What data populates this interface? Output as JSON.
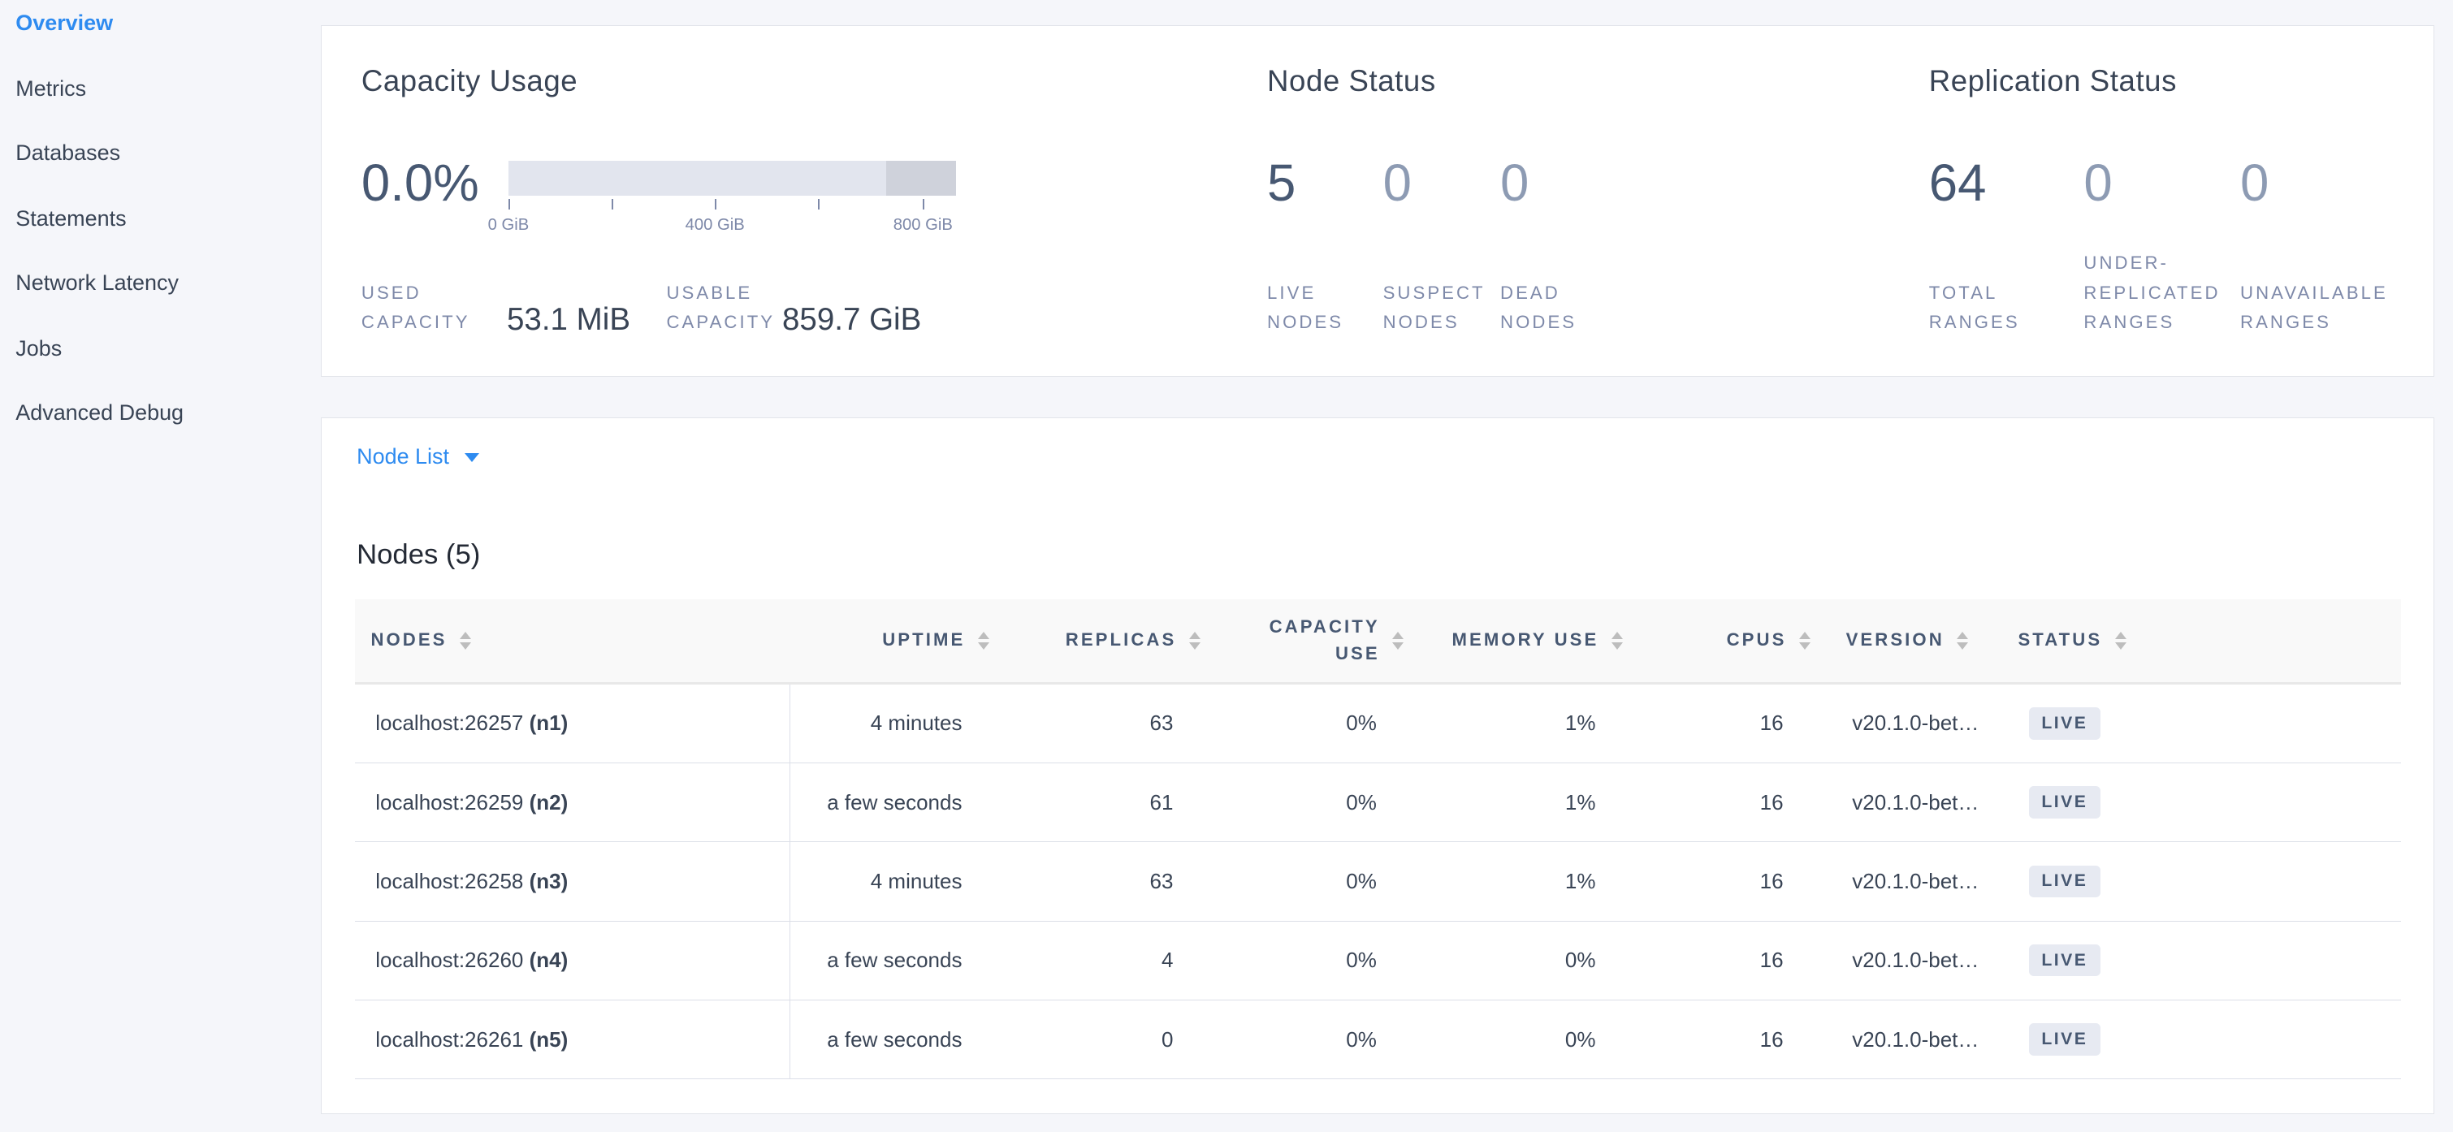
{
  "sidebar": {
    "items": [
      {
        "label": "Overview",
        "active": true
      },
      {
        "label": "Metrics"
      },
      {
        "label": "Databases"
      },
      {
        "label": "Statements"
      },
      {
        "label": "Network Latency"
      },
      {
        "label": "Jobs"
      },
      {
        "label": "Advanced Debug"
      }
    ]
  },
  "capacity": {
    "title": "Capacity Usage",
    "percent": "0.0%",
    "used_fraction": 0.0,
    "reserved_fraction_start": 0.845,
    "ticks": [
      "0 GiB",
      "400 GiB",
      "800 GiB"
    ],
    "used_label_1": "USED",
    "used_label_2": "CAPACITY",
    "used_value": "53.1 MiB",
    "usable_label_1": "USABLE",
    "usable_label_2": "CAPACITY",
    "usable_value": "859.7 GiB"
  },
  "node_status": {
    "title": "Node Status",
    "live": "5",
    "live_label_1": "LIVE",
    "live_label_2": "NODES",
    "suspect": "0",
    "suspect_label_1": "SUSPECT",
    "suspect_label_2": "NODES",
    "dead": "0",
    "dead_label_1": "DEAD",
    "dead_label_2": "NODES"
  },
  "replication": {
    "title": "Replication Status",
    "total": "64",
    "total_label_1": "TOTAL",
    "total_label_2": "RANGES",
    "under": "0",
    "under_label_1": "UNDER-",
    "under_label_2": "REPLICATED",
    "under_label_3": "RANGES",
    "unavail": "0",
    "unavail_label_1": "UNAVAILABLE",
    "unavail_label_2": "RANGES"
  },
  "node_list": {
    "dropdown_label": "Node List",
    "heading": "Nodes (5)",
    "columns": [
      "NODES",
      "UPTIME",
      "REPLICAS",
      "CAPACITY USE",
      "MEMORY USE",
      "CPUS",
      "VERSION",
      "STATUS"
    ],
    "rows": [
      {
        "address": "localhost:26257",
        "id": "(n1)",
        "uptime": "4 minutes",
        "replicas": "63",
        "capacity": "0%",
        "memory": "1%",
        "cpus": "16",
        "version": "v20.1.0-bet…",
        "status": "LIVE"
      },
      {
        "address": "localhost:26259",
        "id": "(n2)",
        "uptime": "a few seconds",
        "replicas": "61",
        "capacity": "0%",
        "memory": "1%",
        "cpus": "16",
        "version": "v20.1.0-bet…",
        "status": "LIVE"
      },
      {
        "address": "localhost:26258",
        "id": "(n3)",
        "uptime": "4 minutes",
        "replicas": "63",
        "capacity": "0%",
        "memory": "1%",
        "cpus": "16",
        "version": "v20.1.0-bet…",
        "status": "LIVE"
      },
      {
        "address": "localhost:26260",
        "id": "(n4)",
        "uptime": "a few seconds",
        "replicas": "4",
        "capacity": "0%",
        "memory": "0%",
        "cpus": "16",
        "version": "v20.1.0-bet…",
        "status": "LIVE"
      },
      {
        "address": "localhost:26261",
        "id": "(n5)",
        "uptime": "a few seconds",
        "replicas": "0",
        "capacity": "0%",
        "memory": "0%",
        "cpus": "16",
        "version": "v20.1.0-bet…",
        "status": "LIVE"
      }
    ]
  },
  "colors": {
    "accent": "#2e8bf0",
    "text": "#394455",
    "muted": "#7e89a9"
  }
}
